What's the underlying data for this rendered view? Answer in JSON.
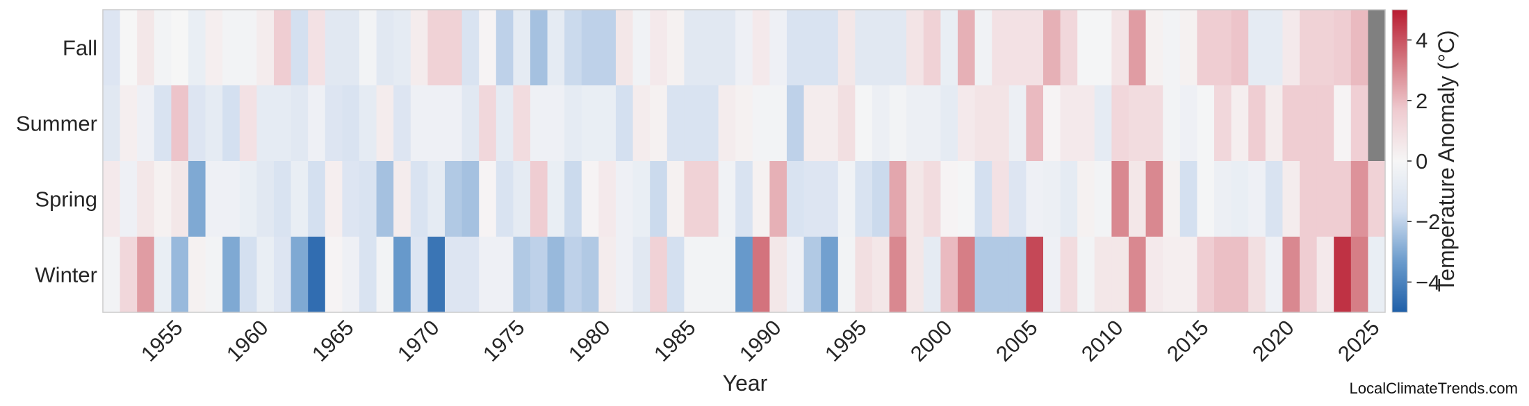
{
  "chart_data": {
    "type": "heatmap",
    "title": "",
    "xlabel": "Year",
    "ylabel": "",
    "x_ticks": [
      "1955",
      "1960",
      "1965",
      "1970",
      "1975",
      "1980",
      "1985",
      "1990",
      "1995",
      "2000",
      "2005",
      "2010",
      "2015",
      "2020",
      "2025"
    ],
    "y_rows": [
      "Fall",
      "Summer",
      "Spring",
      "Winter"
    ],
    "years": [
      1951,
      1952,
      1953,
      1954,
      1955,
      1956,
      1957,
      1958,
      1959,
      1960,
      1961,
      1962,
      1963,
      1964,
      1965,
      1966,
      1967,
      1968,
      1969,
      1970,
      1971,
      1972,
      1973,
      1974,
      1975,
      1976,
      1977,
      1978,
      1979,
      1980,
      1981,
      1982,
      1983,
      1984,
      1985,
      1986,
      1987,
      1988,
      1989,
      1990,
      1991,
      1992,
      1993,
      1994,
      1995,
      1996,
      1997,
      1998,
      1999,
      2000,
      2001,
      2002,
      2003,
      2004,
      2005,
      2006,
      2007,
      2008,
      2009,
      2010,
      2011,
      2012,
      2013,
      2014,
      2015,
      2016,
      2017,
      2018,
      2019,
      2020,
      2021,
      2022,
      2023,
      2024,
      2025
    ],
    "values": {
      "Fall": [
        -1.2,
        0.0,
        0.6,
        -0.2,
        0.0,
        -0.6,
        0.3,
        -0.2,
        -0.2,
        0.4,
        1.6,
        -1.6,
        0.8,
        -1.0,
        -1.0,
        -0.2,
        -1.0,
        -0.8,
        0.4,
        1.4,
        1.4,
        -1.4,
        0.1,
        -2.0,
        -0.8,
        -2.4,
        -0.8,
        -1.8,
        -2.0,
        -2.0,
        0.6,
        -0.3,
        0.5,
        0.2,
        -1.0,
        -1.0,
        -1.0,
        -0.4,
        0.5,
        -0.4,
        -1.4,
        -1.4,
        -1.4,
        0.6,
        -1.0,
        -1.0,
        -1.0,
        0.7,
        1.4,
        -0.6,
        2.2,
        -0.3,
        0.8,
        0.8,
        0.8,
        2.2,
        1.2,
        -0.1,
        -0.1,
        0.7,
        2.6,
        0.2,
        -0.2,
        0.2,
        1.6,
        1.6,
        1.8,
        -0.8,
        -0.8,
        0.5,
        1.4,
        1.4,
        1.6,
        2.0,
        null
      ],
      "Summer": [
        -1.0,
        0.3,
        -0.4,
        -1.4,
        1.8,
        -1.2,
        -0.8,
        -1.6,
        0.8,
        -0.8,
        -0.8,
        -1.0,
        -0.4,
        -1.2,
        -1.4,
        -0.8,
        0.4,
        -1.2,
        -0.4,
        -0.4,
        -0.4,
        -1.0,
        1.2,
        -0.8,
        1.0,
        -0.4,
        -0.4,
        -0.8,
        -0.6,
        -0.6,
        -1.6,
        0.4,
        0.2,
        -1.4,
        -1.4,
        -1.4,
        0.4,
        0.2,
        -0.2,
        -0.2,
        -2.0,
        0.4,
        0.4,
        0.9,
        -0.1,
        -0.5,
        -0.2,
        -0.5,
        -0.5,
        -0.8,
        0.5,
        0.7,
        0.7,
        -0.5,
        2.0,
        0.1,
        0.5,
        0.5,
        -0.8,
        1.2,
        1.0,
        1.0,
        -0.2,
        -0.4,
        -0.1,
        1.2,
        0.3,
        1.6,
        0.4,
        1.6,
        1.6,
        1.6,
        0.1,
        1.5,
        null
      ],
      "Spring": [
        0.5,
        -0.4,
        0.6,
        0.2,
        0.6,
        -3.0,
        -0.4,
        -0.4,
        -0.6,
        -1.0,
        -1.4,
        -0.6,
        -1.6,
        0.3,
        -1.2,
        -1.4,
        -2.4,
        0.4,
        -1.4,
        -0.8,
        -2.2,
        -2.4,
        0.1,
        -1.4,
        -0.8,
        1.6,
        -0.6,
        -1.8,
        0.1,
        0.5,
        -0.4,
        -0.6,
        -1.8,
        0.2,
        1.4,
        1.4,
        -0.3,
        -1.4,
        0.2,
        2.2,
        -1.4,
        -1.2,
        -1.2,
        -0.3,
        -1.4,
        -1.8,
        2.4,
        0.6,
        1.0,
        0.1,
        -0.1,
        -1.6,
        0.8,
        -1.2,
        -0.4,
        -0.5,
        -0.8,
        0.2,
        -0.2,
        3.0,
        0.6,
        3.0,
        0.2,
        -1.6,
        -0.1,
        -0.5,
        -0.6,
        -0.4,
        -1.4,
        0.4,
        1.6,
        1.6,
        1.6,
        2.8,
        1.4
      ],
      "Winter": [
        -0.2,
        1.2,
        2.6,
        -0.6,
        -2.6,
        0.2,
        -0.2,
        -3.0,
        -1.6,
        -0.6,
        -1.2,
        -3.0,
        -4.6,
        0.1,
        -0.4,
        -1.4,
        -0.2,
        -3.4,
        -1.2,
        -4.4,
        -1.2,
        -1.2,
        -0.4,
        -0.4,
        -2.2,
        -2.0,
        -2.6,
        -2.0,
        -2.2,
        0.4,
        -0.4,
        -1.0,
        1.4,
        -1.6,
        -0.2,
        -0.2,
        -0.2,
        -3.4,
        3.4,
        0.6,
        -0.4,
        -2.2,
        -3.2,
        -0.2,
        0.9,
        0.6,
        3.0,
        0.6,
        -0.8,
        2.0,
        3.2,
        -2.2,
        -2.2,
        -2.2,
        4.2,
        -0.4,
        1.0,
        -0.2,
        0.6,
        0.6,
        3.0,
        0.5,
        0.3,
        0.3,
        1.6,
        1.9,
        1.9,
        0.9,
        -0.4,
        3.0,
        1.6,
        0.5,
        4.6,
        3.2,
        -0.6
      ]
    },
    "missing_color": "#808080",
    "colorbar": {
      "label": "Temperature Anomaly (°C)",
      "ticks": [
        "4",
        "2",
        "0",
        "−2",
        "−4"
      ],
      "range": [
        -5,
        5
      ],
      "colors": [
        "#1f5fa8",
        "#6a9bcc",
        "#d3dff0",
        "#f6f6f6",
        "#efcbd0",
        "#d47780",
        "#b81c31"
      ]
    },
    "watermark": "LocalClimateTrends.com"
  }
}
